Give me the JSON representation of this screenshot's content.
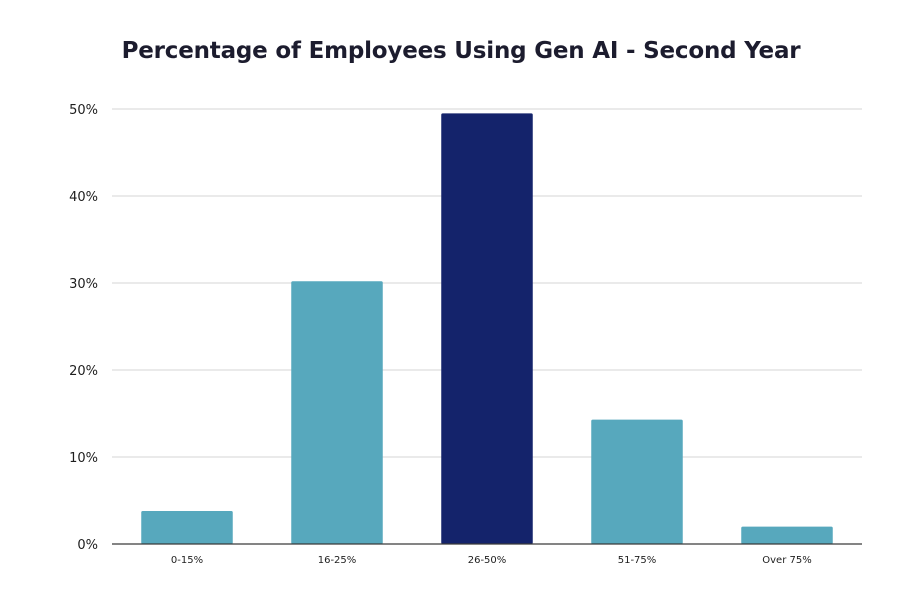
{
  "chart_data": {
    "type": "bar",
    "title": "Percentage of Employees Using Gen AI - Second Year",
    "xlabel": "",
    "ylabel": "",
    "categories": [
      "0-15%",
      "16-25%",
      "26-50%",
      "51-75%",
      "Over 75%"
    ],
    "values": [
      3.8,
      30.2,
      49.5,
      14.3,
      2.0
    ],
    "highlight_index": 2,
    "colors": {
      "bar": "#57a8bd",
      "highlight": "#14236b",
      "grid": "#d6d6d6",
      "axis": "#3a3a3a"
    },
    "ylim": [
      0,
      50
    ],
    "yticks": [
      0,
      10,
      20,
      30,
      40,
      50
    ],
    "ytick_labels": [
      "0%",
      "10%",
      "20%",
      "30%",
      "40%",
      "50%"
    ],
    "grid": true,
    "legend": "none"
  }
}
